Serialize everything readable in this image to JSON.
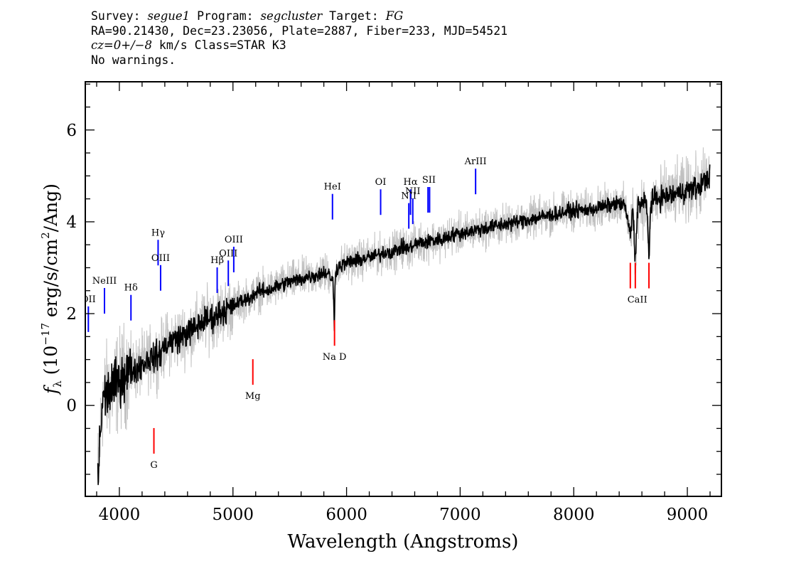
{
  "header": {
    "l1_survey_label": "Survey:",
    "survey": "segue1",
    "l1_program_label": "Program:",
    "program": "segcluster",
    "l1_target_label": "Target:",
    "target": "FG",
    "l2": "RA=90.21430, Dec=23.23056, Plate=2887, Fiber=233, MJD=54521",
    "l3_cz": "cz=0+/−8",
    "l3_rest": "km/s Class=STAR K3",
    "l4": "No warnings."
  },
  "colors": {
    "flux": "#000000",
    "error": "#c0c0c0",
    "emission_lines": "#0000ff",
    "absorption_lines": "#ff0000"
  },
  "chart_data": {
    "type": "line",
    "xlabel": "Wavelength (Angstroms)",
    "ylabel": "f_λ (10^-17 erg/s/cm^2/Ang)",
    "xlim": [
      3700,
      9300
    ],
    "ylim": [
      -1.98,
      7.05
    ],
    "x_ticks": [
      4000,
      5000,
      6000,
      7000,
      8000,
      9000
    ],
    "y_ticks": [
      0,
      2,
      4,
      6
    ],
    "x_tick_labels": [
      "4000",
      "5000",
      "6000",
      "7000",
      "8000",
      "9000"
    ],
    "y_tick_labels": [
      "0",
      "2",
      "4",
      "6"
    ],
    "series": [
      {
        "x": [
          3810,
          3850,
          3900,
          3950,
          4000,
          4050,
          4100,
          4150,
          4200,
          4250,
          4300,
          4350,
          4400,
          4450,
          4500,
          4550,
          4600,
          4650,
          4700,
          4750,
          4800,
          4850,
          4900,
          4950,
          5000,
          5050,
          5100,
          5150,
          5200,
          5250,
          5300,
          5350,
          5400,
          5450,
          5500,
          5550,
          5600,
          5650,
          5700,
          5750,
          5800,
          5850,
          5880,
          5893,
          5900,
          5920,
          5950,
          6000,
          6050,
          6100,
          6150,
          6200,
          6250,
          6300,
          6350,
          6400,
          6450,
          6500,
          6550,
          6600,
          6650,
          6700,
          6750,
          6800,
          6850,
          6900,
          6950,
          7000,
          7100,
          7200,
          7300,
          7400,
          7500,
          7600,
          7700,
          7800,
          7900,
          8000,
          8100,
          8200,
          8300,
          8400,
          8450,
          8498,
          8520,
          8542,
          8560,
          8600,
          8640,
          8662,
          8680,
          8720,
          8800,
          8900,
          9000,
          9100,
          9150,
          9200
        ],
        "y": [
          -1.6,
          0.1,
          0.3,
          0.4,
          0.55,
          0.7,
          0.75,
          0.8,
          0.9,
          1.0,
          1.05,
          1.1,
          1.3,
          1.4,
          1.45,
          1.5,
          1.6,
          1.65,
          1.75,
          1.85,
          1.9,
          1.95,
          2.05,
          2.1,
          2.15,
          2.25,
          2.3,
          2.35,
          2.45,
          2.5,
          2.5,
          2.55,
          2.6,
          2.65,
          2.7,
          2.72,
          2.75,
          2.8,
          2.82,
          2.85,
          2.9,
          2.85,
          2.7,
          1.7,
          2.9,
          3.0,
          3.05,
          3.1,
          3.15,
          3.15,
          3.2,
          3.22,
          3.25,
          3.3,
          3.35,
          3.35,
          3.4,
          3.45,
          3.42,
          3.5,
          3.55,
          3.55,
          3.6,
          3.6,
          3.62,
          3.7,
          3.72,
          3.75,
          3.8,
          3.85,
          3.9,
          3.95,
          4.0,
          4.05,
          4.1,
          4.15,
          4.2,
          4.25,
          4.25,
          4.3,
          4.35,
          4.4,
          4.35,
          3.7,
          4.3,
          3.1,
          4.35,
          4.4,
          4.4,
          3.3,
          4.45,
          4.5,
          4.55,
          4.6,
          4.7,
          4.75,
          4.9,
          5.0
        ]
      }
    ],
    "line_labels": [
      {
        "text": "OII",
        "wavelength": 3727,
        "kind": "emission",
        "y": 1.6
      },
      {
        "text": "NeIII",
        "wavelength": 3869,
        "kind": "emission",
        "y": 2.0
      },
      {
        "text": "Hδ",
        "wavelength": 4102,
        "kind": "emission",
        "y": 1.85
      },
      {
        "text": "Hγ",
        "wavelength": 4341,
        "kind": "emission",
        "y": 3.05
      },
      {
        "text": "OIII",
        "wavelength": 4363,
        "kind": "emission",
        "y": 2.5
      },
      {
        "text": "Hβ",
        "wavelength": 4861,
        "kind": "emission",
        "y": 2.45
      },
      {
        "text": "OIII",
        "wavelength": 4959,
        "kind": "emission",
        "y": 2.6
      },
      {
        "text": "OIII",
        "wavelength": 5007,
        "kind": "emission",
        "y": 2.9
      },
      {
        "text": "HeI",
        "wavelength": 5876,
        "kind": "emission",
        "y": 4.05
      },
      {
        "text": "OI",
        "wavelength": 6300,
        "kind": "emission",
        "y": 4.15
      },
      {
        "text": "NII",
        "wavelength": 6548,
        "kind": "emission",
        "y": 3.85
      },
      {
        "text": "Hα",
        "wavelength": 6563,
        "kind": "emission",
        "y": 4.15
      },
      {
        "text": "NII",
        "wavelength": 6583,
        "kind": "emission",
        "y": 3.95
      },
      {
        "text": "SII",
        "wavelength": 6717,
        "kind": "emission",
        "y": 4.2
      },
      {
        "text": "SII",
        "wavelength": 6731,
        "kind": "emission",
        "y": 4.2
      },
      {
        "text": "ArIII",
        "wavelength": 7136,
        "kind": "emission",
        "y": 4.6
      },
      {
        "text": "G",
        "wavelength": 4304,
        "kind": "absorption",
        "y": -1.05
      },
      {
        "text": "Mg",
        "wavelength": 5175,
        "kind": "absorption",
        "y": 0.45
      },
      {
        "text": "Na D",
        "wavelength": 5894,
        "kind": "absorption",
        "y": 1.3
      },
      {
        "text": "CaII",
        "wavelength": 8498,
        "kind": "absorption",
        "y": 2.55
      },
      {
        "text": "CaII",
        "wavelength": 8542,
        "kind": "absorption",
        "y": 2.55
      },
      {
        "text": "CaII",
        "wavelength": 8662,
        "kind": "absorption",
        "y": 2.55
      }
    ]
  }
}
